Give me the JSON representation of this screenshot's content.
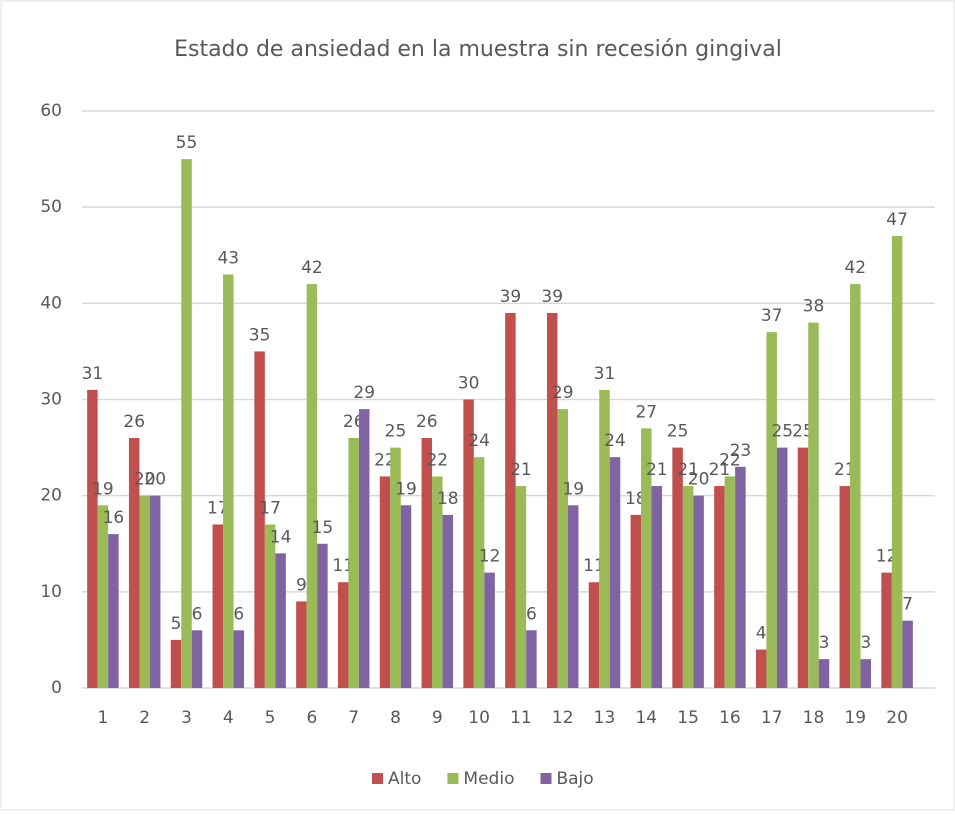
{
  "chart_data": {
    "type": "bar",
    "title": "Estado de ansiedad en la muestra sin recesión gingival",
    "categories": [
      "1",
      "2",
      "3",
      "4",
      "5",
      "6",
      "7",
      "8",
      "9",
      "10",
      "11",
      "12",
      "13",
      "14",
      "15",
      "16",
      "17",
      "18",
      "19",
      "20"
    ],
    "series": [
      {
        "name": "Alto",
        "color": "#c0504d",
        "values": [
          31,
          26,
          5,
          17,
          35,
          9,
          11,
          22,
          26,
          30,
          39,
          39,
          11,
          18,
          25,
          21,
          4,
          25,
          21,
          12
        ]
      },
      {
        "name": "Medio",
        "color": "#9bbb59",
        "values": [
          19,
          20,
          55,
          43,
          17,
          42,
          26,
          25,
          22,
          24,
          21,
          29,
          31,
          27,
          21,
          22,
          37,
          38,
          42,
          47
        ]
      },
      {
        "name": "Bajo",
        "color": "#8064a2",
        "values": [
          16,
          20,
          6,
          6,
          14,
          15,
          29,
          19,
          18,
          12,
          6,
          19,
          24,
          21,
          20,
          23,
          25,
          3,
          3,
          7
        ]
      }
    ],
    "ylim": [
      0,
      60
    ],
    "yticks": [
      0,
      10,
      20,
      30,
      40,
      50,
      60
    ],
    "grid": true,
    "legend": "bottom"
  }
}
